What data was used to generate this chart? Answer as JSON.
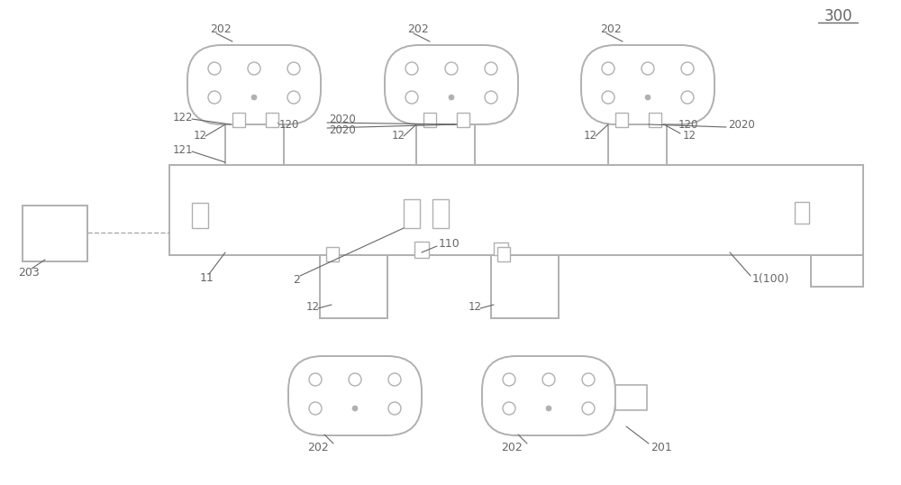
{
  "bg_color": "#ffffff",
  "line_color": "#b0b0b0",
  "text_color": "#666666",
  "fig_width": 10.0,
  "fig_height": 5.38,
  "dpi": 100
}
